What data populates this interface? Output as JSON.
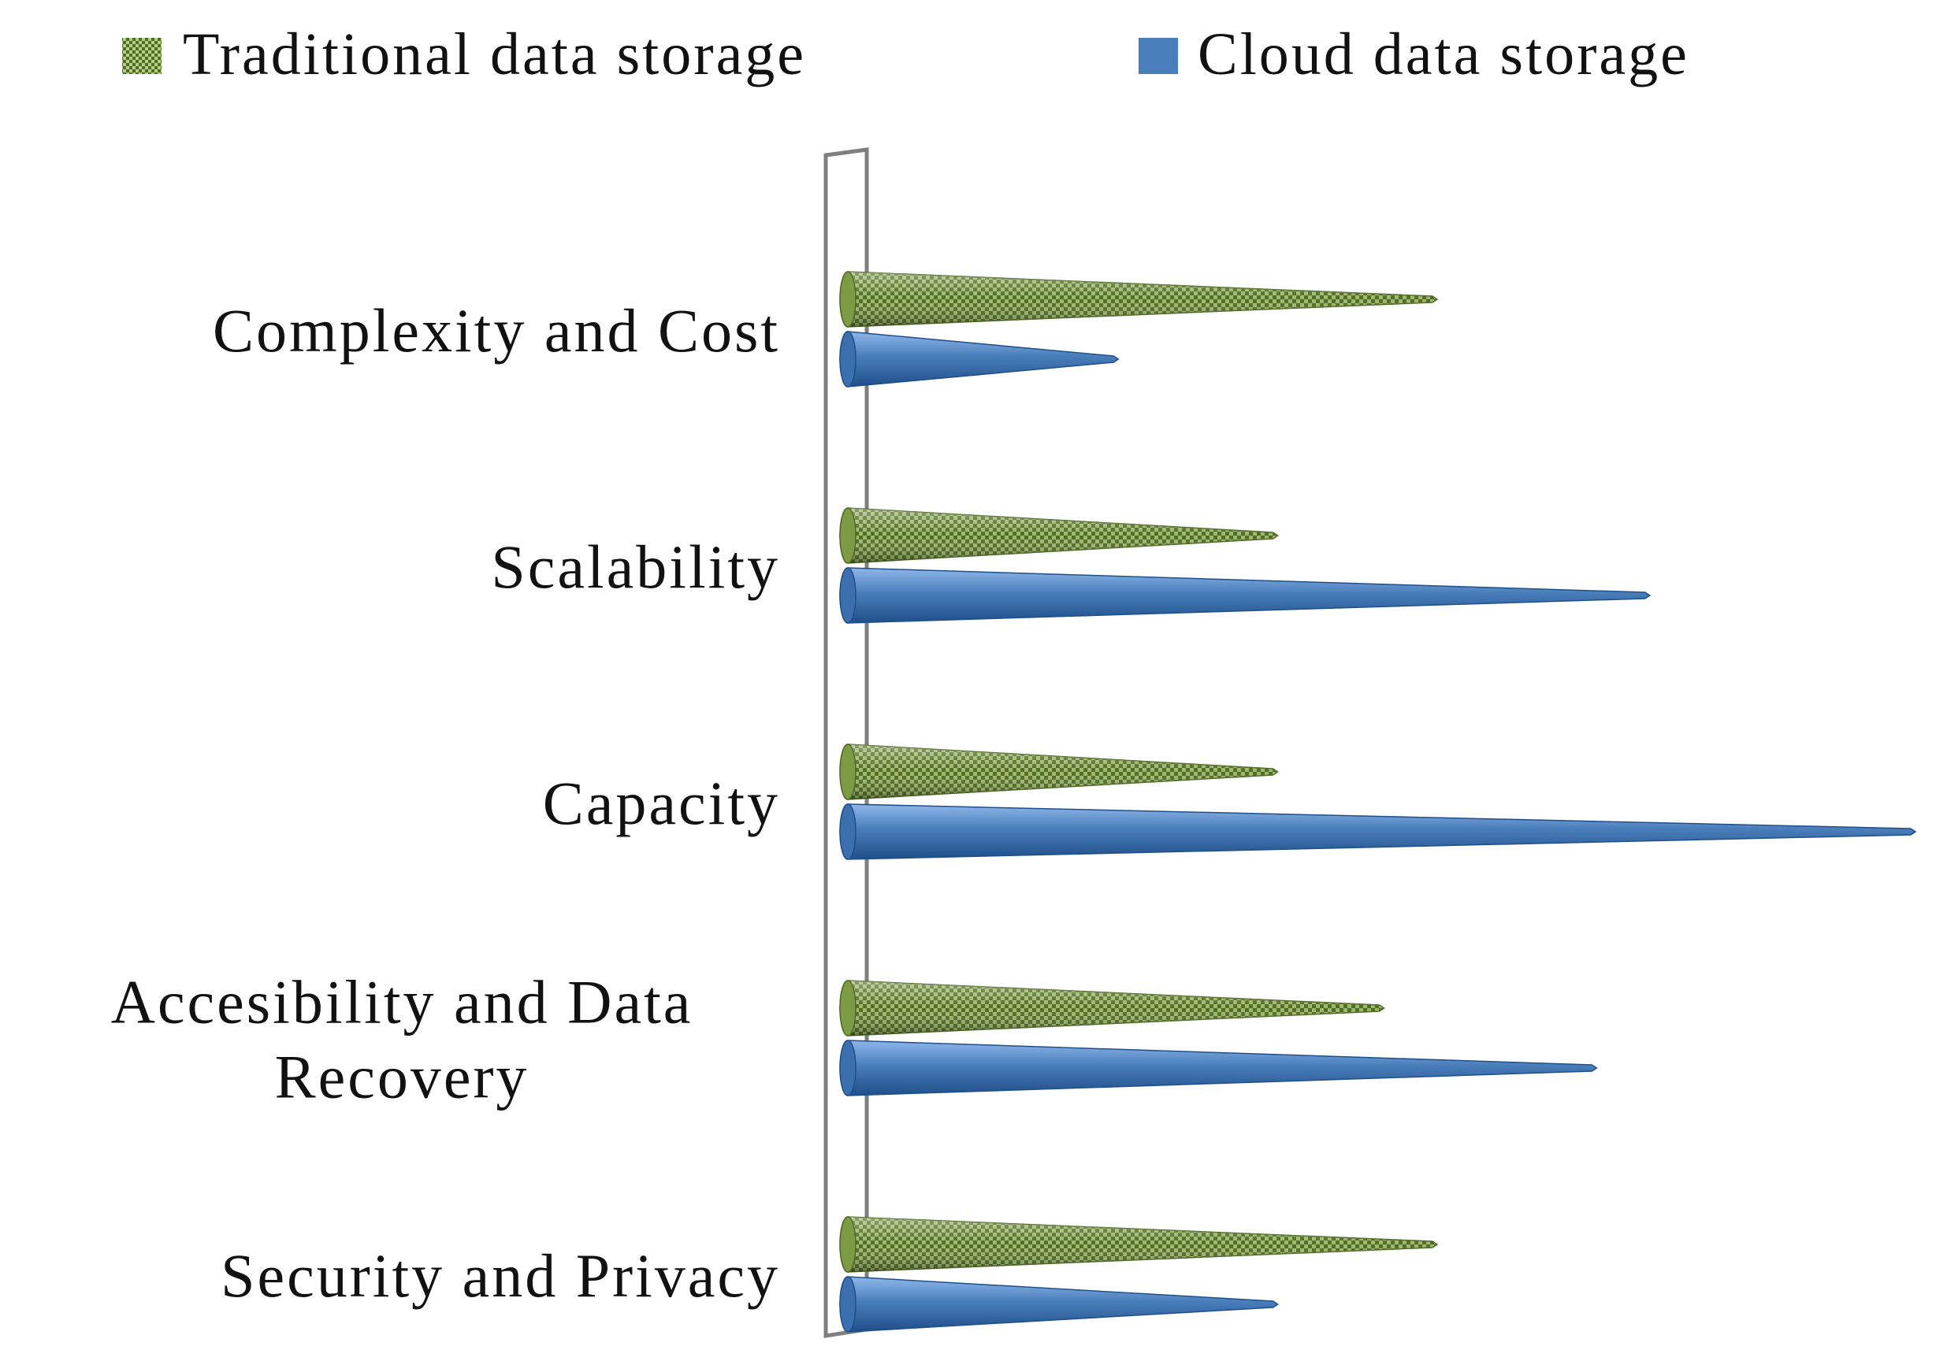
{
  "chart_data": {
    "type": "bar",
    "orientation": "horizontal",
    "bar_shape": "cone",
    "categories": [
      "Complexity and Cost",
      "Scalability",
      "Capacity",
      "Accesibility and Data Recovery",
      "Security and Privacy"
    ],
    "category_label_lines": [
      [
        "Complexity and Cost"
      ],
      [
        "Scalability"
      ],
      [
        "Capacity"
      ],
      [
        "Accesibility and Data",
        "Recovery"
      ],
      [
        "Security and Privacy"
      ]
    ],
    "series": [
      {
        "name": "Traditional data storage",
        "color": "#77933C",
        "values": [
          5.5,
          4,
          4,
          5,
          5.5
        ]
      },
      {
        "name": "Cloud data storage",
        "color": "#4A7EBB",
        "values": [
          2.5,
          7.5,
          10,
          7,
          4
        ]
      }
    ],
    "xlim": [
      0,
      10
    ],
    "grid": false,
    "legend_position": "top",
    "title": "",
    "xlabel": "",
    "ylabel": ""
  }
}
